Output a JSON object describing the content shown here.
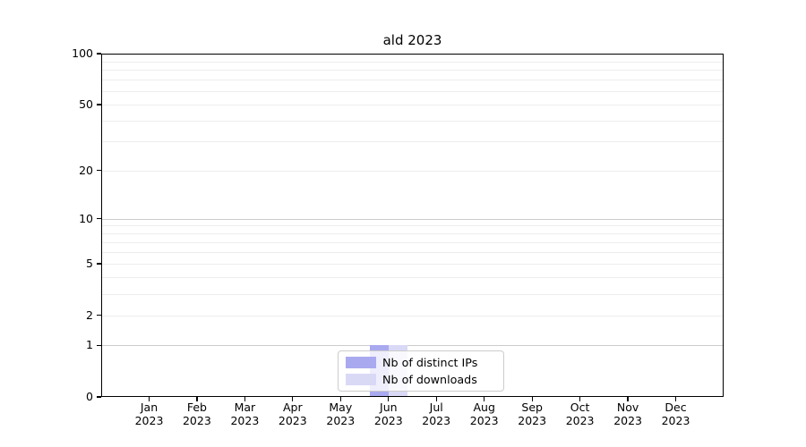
{
  "chart_data": {
    "type": "bar",
    "title": "ald 2023",
    "categories": [
      "Jan\n2023",
      "Feb\n2023",
      "Mar\n2023",
      "Apr\n2023",
      "May\n2023",
      "Jun\n2023",
      "Jul\n2023",
      "Aug\n2023",
      "Sep\n2023",
      "Oct\n2023",
      "Nov\n2023",
      "Dec\n2023"
    ],
    "series": [
      {
        "name": "Nb of distinct IPs",
        "color": "#a9a9f0",
        "values": [
          0,
          0,
          0,
          0,
          0,
          1,
          0,
          0,
          0,
          0,
          0,
          0
        ]
      },
      {
        "name": "Nb of downloads",
        "color": "#d9d9f6",
        "values": [
          0,
          0,
          0,
          0,
          0,
          1,
          0,
          0,
          0,
          0,
          0,
          0
        ]
      }
    ],
    "xlabel": "",
    "ylabel": "",
    "yscale": "log1p",
    "ylim": [
      0,
      100
    ],
    "yticks_labeled": [
      0,
      1,
      2,
      5,
      10,
      20,
      50,
      100
    ],
    "yticks_grid_major": [
      1,
      10,
      100
    ],
    "yticks_grid_minor": [
      2,
      3,
      4,
      5,
      6,
      7,
      8,
      9,
      20,
      30,
      40,
      50,
      60,
      70,
      80,
      90
    ],
    "grid": true,
    "legend_position": "lower center",
    "background": "#ffffff"
  }
}
